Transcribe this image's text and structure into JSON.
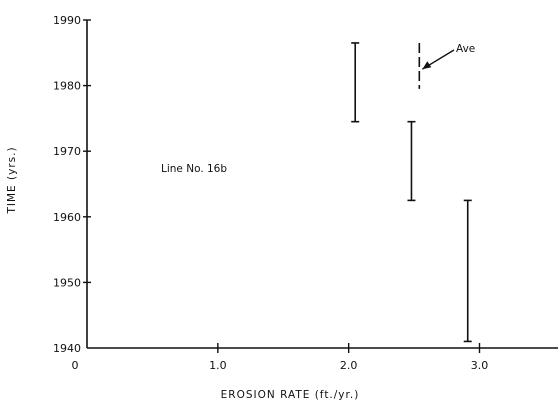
{
  "chart_data": {
    "type": "range",
    "xlabel": "EROSION RATE (ft./yr.)",
    "ylabel": "TIME (yrs.)",
    "xlim": [
      0,
      3.6
    ],
    "ylim": [
      1940,
      1990
    ],
    "x_ticks": [
      {
        "value": 0,
        "label": "0"
      },
      {
        "value": 1,
        "label": "1.0"
      },
      {
        "value": 2,
        "label": "2.0"
      },
      {
        "value": 3,
        "label": "3.0"
      }
    ],
    "y_ticks": [
      {
        "value": 1940,
        "label": "1940"
      },
      {
        "value": 1950,
        "label": "1950"
      },
      {
        "value": 1960,
        "label": "1960"
      },
      {
        "value": 1970,
        "label": "1970"
      },
      {
        "value": 1980,
        "label": "1980"
      },
      {
        "value": 1990,
        "label": "1990"
      }
    ],
    "intervals": [
      {
        "x": 2.05,
        "y_start": 1974.5,
        "y_end": 1986.5
      },
      {
        "x": 2.48,
        "y_start": 1962.5,
        "y_end": 1974.5
      },
      {
        "x": 2.91,
        "y_start": 1941,
        "y_end": 1962.5
      }
    ],
    "average": {
      "x": 2.54,
      "y_start": 1979.5,
      "y_end": 1986.5,
      "label": "Ave"
    },
    "annotations": [
      {
        "text": "Line No. 16b"
      }
    ],
    "grid": false
  }
}
